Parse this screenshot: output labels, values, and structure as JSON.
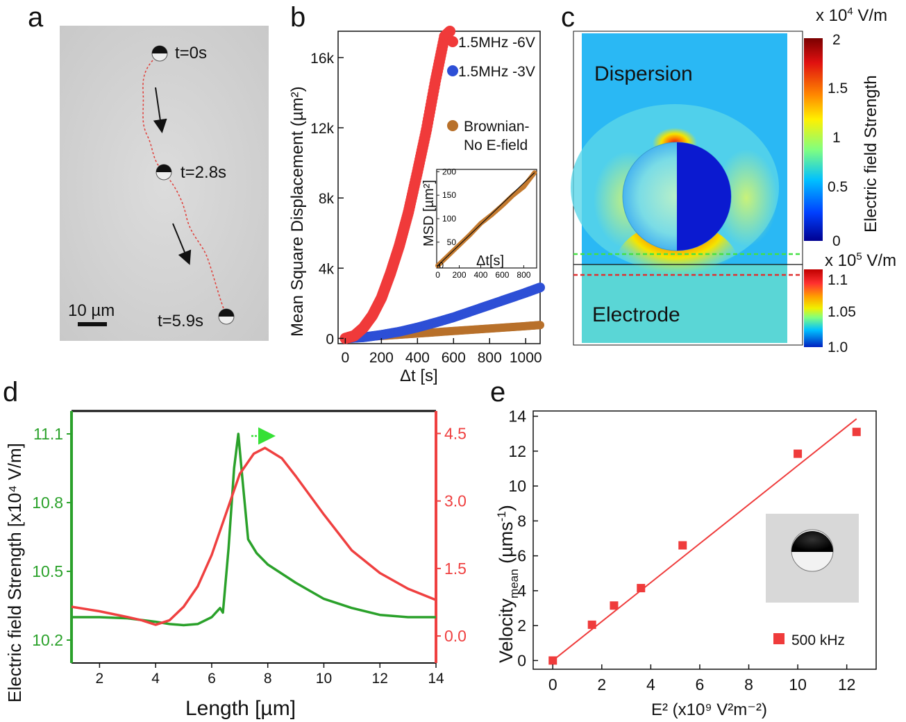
{
  "panels": {
    "a": {
      "label": "a",
      "time_labels": [
        "t=0s",
        "t=2.8s",
        "t=5.9s"
      ],
      "scalebar_label": "10 µm"
    },
    "c": {
      "label": "c",
      "region_top": "Dispersion",
      "region_bottom": "Electrode",
      "colorbar_top": {
        "unit_prefix": "x 10",
        "unit_exp": "4",
        "unit_suffix": " V/m",
        "ticks": [
          "2",
          "1.5",
          "1",
          "0.5",
          "0"
        ],
        "title": "Electric field Strength"
      },
      "colorbar_bottom": {
        "unit_prefix": "x 10",
        "unit_exp": "5",
        "unit_suffix": " V/m",
        "ticks": [
          "1.1",
          "1.05",
          "1.0"
        ]
      }
    }
  },
  "chart_data": [
    {
      "panel": "b",
      "type": "scatter",
      "title": "",
      "xlabel": "Δt [s]",
      "ylabel": "Mean Square Displacement (µm²)",
      "xlim": [
        -40,
        1080
      ],
      "ylim": [
        -300,
        17500
      ],
      "xticks": [
        0,
        200,
        400,
        600,
        800,
        1000
      ],
      "xtick_labels": [
        "0",
        "200",
        "400",
        "600",
        "800",
        "1000"
      ],
      "yticks": [
        0,
        4000,
        8000,
        12000,
        16000
      ],
      "ytick_labels": [
        "0",
        "4k",
        "8k",
        "12k",
        "16k"
      ],
      "series": [
        {
          "name": "1.5MHz -6V",
          "color": "#f03a3a",
          "x": [
            0,
            50,
            100,
            150,
            200,
            250,
            300,
            350,
            400,
            450,
            500,
            550,
            580
          ],
          "y": [
            0,
            150,
            600,
            1300,
            2300,
            3700,
            5300,
            7200,
            9500,
            11900,
            14700,
            17200,
            17500
          ]
        },
        {
          "name": "1.5MHz -3V",
          "color": "#2d4fd6",
          "x": [
            0,
            100,
            200,
            300,
            400,
            500,
            600,
            700,
            800,
            900,
            1000,
            1080
          ],
          "y": [
            0,
            60,
            200,
            380,
            620,
            900,
            1200,
            1550,
            1900,
            2250,
            2600,
            2900
          ]
        },
        {
          "name": "Brownian-No E-field",
          "legend_line1": "Brownian-",
          "legend_line2": "No E-field",
          "color": "#b8702a",
          "x": [
            0,
            100,
            200,
            300,
            400,
            500,
            600,
            700,
            800,
            900,
            1000,
            1080
          ],
          "y": [
            0,
            70,
            140,
            210,
            280,
            350,
            420,
            490,
            560,
            630,
            700,
            760
          ]
        }
      ],
      "inset": {
        "xlabel": "Δt[s]",
        "ylabel": "MSD [µm²]",
        "xlim": [
          -10,
          920
        ],
        "ylim": [
          -5,
          205
        ],
        "xticks": [
          0,
          200,
          400,
          600,
          800
        ],
        "yticks": [
          0,
          50,
          100,
          150,
          200
        ],
        "series": {
          "x": [
            0,
            100,
            200,
            300,
            400,
            500,
            600,
            700,
            800,
            900
          ],
          "y": [
            0,
            22,
            44,
            66,
            90,
            108,
            128,
            150,
            168,
            198
          ]
        }
      }
    },
    {
      "panel": "d",
      "type": "line",
      "title": "",
      "xlabel": "Length [µm]",
      "ylabel": "Electric field Strength [x10⁴ V/m]",
      "xlim": [
        1,
        14
      ],
      "ylim_left": [
        10.1,
        11.2
      ],
      "ylim_right": [
        -0.6,
        5.0
      ],
      "xticks": [
        2,
        4,
        6,
        8,
        10,
        12,
        14
      ],
      "yticks_left": [
        10.2,
        10.5,
        10.8,
        11.1
      ],
      "ytick_labels_left": [
        "10.2",
        "10.5",
        "10.8",
        "11.1"
      ],
      "yticks_right": [
        0.0,
        1.5,
        3.0,
        4.5
      ],
      "ytick_labels_right": [
        "0.0",
        "1.5",
        "3.0",
        "4.5"
      ],
      "series": [
        {
          "name": "Electric field (left axis)",
          "color": "#2aa12a",
          "axis": "left",
          "x": [
            1,
            2,
            3,
            4,
            4.5,
            5,
            5.5,
            6,
            6.3,
            6.4,
            6.6,
            6.8,
            6.95,
            7.1,
            7.3,
            7.6,
            8,
            9,
            10,
            11,
            12,
            13,
            14
          ],
          "y": [
            10.3,
            10.3,
            10.295,
            10.28,
            10.27,
            10.265,
            10.27,
            10.3,
            10.34,
            10.32,
            10.6,
            10.95,
            11.1,
            10.9,
            10.64,
            10.58,
            10.53,
            10.45,
            10.38,
            10.34,
            10.31,
            10.3,
            10.3
          ]
        },
        {
          "name": "Velocity (right axis)",
          "color": "#ef4040",
          "axis": "right",
          "x": [
            1,
            2,
            3,
            3.5,
            4,
            4.5,
            5,
            5.5,
            6,
            6.5,
            7,
            7.5,
            7.9,
            8.5,
            9,
            10,
            11,
            12,
            13,
            14
          ],
          "y": [
            0.65,
            0.55,
            0.42,
            0.35,
            0.25,
            0.35,
            0.65,
            1.1,
            1.8,
            2.7,
            3.6,
            4.05,
            4.18,
            3.95,
            3.55,
            2.7,
            1.9,
            1.4,
            1.05,
            0.8
          ]
        }
      ],
      "annotation": "arrow right"
    },
    {
      "panel": "e",
      "type": "scatter",
      "title": "",
      "xlabel": "E² (x10⁹ V²m⁻²)",
      "ylabel": "Velocity_mean (µms⁻¹)",
      "xlim": [
        -0.8,
        13.2
      ],
      "ylim": [
        -0.5,
        14.3
      ],
      "xticks": [
        0,
        2,
        4,
        6,
        8,
        10,
        12
      ],
      "yticks": [
        0,
        2,
        4,
        6,
        8,
        10,
        12,
        14
      ],
      "series": [
        {
          "name": "500 kHz",
          "color": "#ef3b3b",
          "x": [
            0,
            1.6,
            2.5,
            3.6,
            5.3,
            10,
            12.4
          ],
          "y": [
            0,
            2.05,
            3.15,
            4.15,
            6.6,
            11.85,
            13.1
          ]
        }
      ],
      "fit_line": {
        "x": [
          0,
          12.4
        ],
        "y": [
          0,
          13.85
        ]
      }
    }
  ]
}
